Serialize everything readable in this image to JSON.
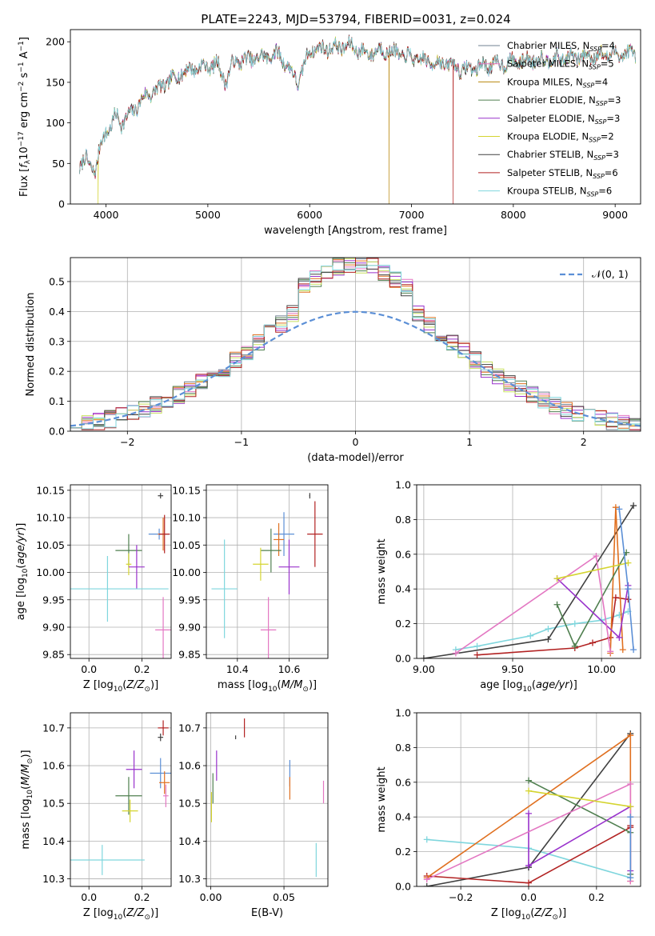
{
  "figure": {
    "title": "PLATE=2243, MJD=53794, FIBERID=0031, z=0.024"
  },
  "chart_data": [
    {
      "id": "spectrum",
      "type": "line",
      "xlabel": "wavelength [Angstrom, rest frame]",
      "ylabel": "Flux [f_λ10^-17 erg cm^-2 s^-1 A^-1]",
      "xlim": [
        3650,
        9250
      ],
      "ylim": [
        0,
        215
      ],
      "xticks": [
        4000,
        5000,
        6000,
        7000,
        8000,
        9000
      ],
      "yticks": [
        0,
        50,
        100,
        150,
        200
      ],
      "grid": false,
      "legend": "right",
      "x": [
        3740,
        3800,
        3900,
        3950,
        4000,
        4050,
        4100,
        4150,
        4200,
        4300,
        4400,
        4500,
        4600,
        4700,
        4800,
        4900,
        5000,
        5100,
        5175,
        5250,
        5400,
        5500,
        5700,
        5890,
        6000,
        6200,
        6400,
        6563,
        6700,
        6800,
        7000,
        7200,
        7400,
        7500,
        7700,
        8000,
        8200,
        8500,
        8700,
        9000,
        9200
      ],
      "flux": [
        45,
        55,
        40,
        75,
        90,
        95,
        110,
        100,
        105,
        120,
        135,
        140,
        150,
        158,
        165,
        168,
        170,
        172,
        150,
        175,
        178,
        180,
        185,
        150,
        190,
        192,
        195,
        185,
        190,
        188,
        180,
        175,
        172,
        165,
        170,
        175,
        178,
        180,
        182,
        185,
        186
      ],
      "series": [
        {
          "name": "Chabrier MILES, N_SSP=4",
          "label_main": "Chabrier MILES, N",
          "label_sub": "SSP",
          "label_tail": "=4",
          "color": "#708090",
          "spike_at": null
        },
        {
          "name": "Salpeter MILES, N_SSP=5",
          "label_main": "Salpeter MILES, N",
          "label_sub": "SSP",
          "label_tail": "=5",
          "color": "#e377c2",
          "spike_at": null
        },
        {
          "name": "Kroupa MILES, N_SSP=4",
          "label_main": "Kroupa MILES, N",
          "label_sub": "SSP",
          "label_tail": "=4",
          "color": "#b8860b",
          "spike_at": 6780
        },
        {
          "name": "Chabrier ELODIE, N_SSP=3",
          "label_main": "Chabrier ELODIE, N",
          "label_sub": "SSP",
          "label_tail": "=3",
          "color": "#4f7f4f",
          "spike_at": null
        },
        {
          "name": "Salpeter ELODIE, N_SSP=3",
          "label_main": "Salpeter ELODIE, N",
          "label_sub": "SSP",
          "label_tail": "=3",
          "color": "#9932cc",
          "spike_at": null
        },
        {
          "name": "Kroupa ELODIE, N_SSP=2",
          "label_main": "Kroupa ELODIE, N",
          "label_sub": "SSP",
          "label_tail": "=2",
          "color": "#d4d430",
          "spike_at": 3920
        },
        {
          "name": "Chabrier STELIB, N_SSP=3",
          "label_main": "Chabrier STELIB, N",
          "label_sub": "SSP",
          "label_tail": "=3",
          "color": "#404040",
          "spike_at": null
        },
        {
          "name": "Salpeter STELIB, N_SSP=6",
          "label_main": "Salpeter STELIB, N",
          "label_sub": "SSP",
          "label_tail": "=6",
          "color": "#b22222",
          "spike_at": 7410
        },
        {
          "name": "Kroupa STELIB, N_SSP=6",
          "label_main": "Kroupa STELIB, N",
          "label_sub": "SSP",
          "label_tail": "=6",
          "color": "#7fd6dd",
          "spike_at": null
        }
      ]
    },
    {
      "id": "residuals",
      "type": "histogram",
      "xlabel": "(data-model)/error",
      "ylabel": "Normed distribution",
      "xlim": [
        -2.5,
        2.5
      ],
      "ylim": [
        0,
        0.58
      ],
      "xticks": [
        -2,
        -1,
        0,
        1,
        2
      ],
      "yticks": [
        0.0,
        0.1,
        0.2,
        0.3,
        0.4,
        0.5
      ],
      "grid": true,
      "legend": "top-right",
      "reference": {
        "name": "𝒩(0, 1)",
        "mean": 0,
        "sigma": 1,
        "color": "#5b8fd6"
      },
      "series_colors": [
        "#708090",
        "#e377c2",
        "#e07020",
        "#4f7f4f",
        "#9932cc",
        "#c8e060",
        "#404040",
        "#b22222",
        "#7fd6dd"
      ]
    },
    {
      "id": "age_vs_Z",
      "type": "errorbar",
      "xlabel": "Z [log10(Z/Z⊙)]",
      "ylabel": "age [log10(age/yr)]",
      "xlim": [
        -0.07,
        0.31
      ],
      "ylim": [
        9.843,
        10.16
      ],
      "xticks": [
        0.0,
        0.2
      ],
      "yticks": [
        9.85,
        9.9,
        9.95,
        10.0,
        10.05,
        10.1,
        10.15
      ],
      "grid": true,
      "points": [
        {
          "x": 0.27,
          "y": 10.14,
          "xerr": 0.01,
          "yerr": 0.005,
          "color": "#404040"
        },
        {
          "x": 0.265,
          "y": 10.07,
          "xerr": 0.04,
          "yerr": 0.01,
          "color": "#5b8fd6"
        },
        {
          "x": 0.28,
          "y": 10.07,
          "xerr": 0.02,
          "yerr": 0.03,
          "color": "#e07020"
        },
        {
          "x": 0.285,
          "y": 10.07,
          "xerr": 0.02,
          "yerr": 0.035,
          "color": "#b22222"
        },
        {
          "x": 0.15,
          "y": 10.04,
          "xerr": 0.05,
          "yerr": 0.03,
          "color": "#4f7f4f"
        },
        {
          "x": 0.15,
          "y": 10.015,
          "xerr": 0.01,
          "yerr": 0.02,
          "color": "#d4d430"
        },
        {
          "x": 0.18,
          "y": 10.01,
          "xerr": 0.03,
          "yerr": 0.04,
          "color": "#9932cc"
        },
        {
          "x": 0.07,
          "y": 9.97,
          "xerr": 0.23,
          "yerr": 0.06,
          "color": "#7fd6dd"
        },
        {
          "x": 0.28,
          "y": 9.895,
          "xerr": 0.03,
          "yerr": 0.06,
          "color": "#e377c2"
        }
      ]
    },
    {
      "id": "age_vs_mass",
      "type": "errorbar",
      "xlabel": "mass [log10(M/M⊙)]",
      "ylabel": "",
      "xlim": [
        10.28,
        10.75
      ],
      "ylim": [
        9.843,
        10.16
      ],
      "xticks": [
        10.4,
        10.6
      ],
      "yticks": [
        9.85,
        9.9,
        9.95,
        10.0,
        10.05,
        10.1,
        10.15
      ],
      "grid": true,
      "points": [
        {
          "x": 10.68,
          "y": 10.14,
          "xerr": 0.002,
          "yerr": 0.005,
          "color": "#404040"
        },
        {
          "x": 10.7,
          "y": 10.07,
          "xerr": 0.03,
          "yerr": 0.06,
          "color": "#b22222"
        },
        {
          "x": 10.58,
          "y": 10.07,
          "xerr": 0.04,
          "yerr": 0.04,
          "color": "#5b8fd6"
        },
        {
          "x": 10.56,
          "y": 10.06,
          "xerr": 0.02,
          "yerr": 0.03,
          "color": "#e07020"
        },
        {
          "x": 10.53,
          "y": 10.04,
          "xerr": 0.04,
          "yerr": 0.04,
          "color": "#4f7f4f"
        },
        {
          "x": 10.49,
          "y": 10.015,
          "xerr": 0.03,
          "yerr": 0.03,
          "color": "#d4d430"
        },
        {
          "x": 10.6,
          "y": 10.01,
          "xerr": 0.04,
          "yerr": 0.05,
          "color": "#9932cc"
        },
        {
          "x": 10.35,
          "y": 9.97,
          "xerr": 0.05,
          "yerr": 0.09,
          "color": "#7fd6dd"
        },
        {
          "x": 10.52,
          "y": 9.895,
          "xerr": 0.03,
          "yerr": 0.06,
          "color": "#e377c2"
        }
      ]
    },
    {
      "id": "weight_vs_age",
      "type": "line",
      "xlabel": "age [log10(age/yr)]",
      "ylabel": "mass weight",
      "xlim": [
        8.96,
        10.22
      ],
      "ylim": [
        0,
        1.0
      ],
      "xticks": [
        9.0,
        9.5,
        10.0
      ],
      "yticks": [
        0.0,
        0.2,
        0.4,
        0.6,
        0.8,
        1.0
      ],
      "grid": true,
      "series": [
        {
          "color": "#7fd6dd",
          "x": [
            9.18,
            9.3,
            9.6,
            9.7,
            9.85,
            10.0,
            10.1,
            10.15
          ],
          "y": [
            0.05,
            0.07,
            0.13,
            0.17,
            0.2,
            0.22,
            0.25,
            0.27
          ]
        },
        {
          "color": "#404040",
          "x": [
            9.0,
            9.7,
            10.18
          ],
          "y": [
            0.0,
            0.11,
            0.88
          ]
        },
        {
          "color": "#b22222",
          "x": [
            9.3,
            9.85,
            9.95,
            10.05,
            10.08,
            10.15
          ],
          "y": [
            0.02,
            0.06,
            0.09,
            0.12,
            0.35,
            0.34
          ]
        },
        {
          "color": "#e07020",
          "x": [
            10.05,
            10.08,
            10.12
          ],
          "y": [
            0.03,
            0.87,
            0.05
          ]
        },
        {
          "color": "#4f7f4f",
          "x": [
            9.75,
            9.85,
            10.14
          ],
          "y": [
            0.31,
            0.07,
            0.61
          ]
        },
        {
          "color": "#9932cc",
          "x": [
            9.75,
            10.1,
            10.15
          ],
          "y": [
            0.46,
            0.12,
            0.42
          ]
        },
        {
          "color": "#e377c2",
          "x": [
            9.18,
            9.97,
            10.05
          ],
          "y": [
            0.03,
            0.59,
            0.04
          ]
        },
        {
          "color": "#d4d430",
          "x": [
            9.75,
            10.15
          ],
          "y": [
            0.46,
            0.55
          ]
        },
        {
          "color": "#5b8fd6",
          "x": [
            10.1,
            10.15,
            10.18
          ],
          "y": [
            0.86,
            0.4,
            0.05
          ]
        }
      ]
    },
    {
      "id": "mass_vs_Z",
      "type": "errorbar",
      "xlabel": "Z [log10(Z/Z⊙)]",
      "ylabel": "mass [log10(M/M⊙)]",
      "xlim": [
        -0.07,
        0.31
      ],
      "ylim": [
        10.28,
        10.74
      ],
      "xticks": [
        0.0,
        0.2
      ],
      "yticks": [
        10.3,
        10.4,
        10.5,
        10.6,
        10.7
      ],
      "grid": true,
      "points": [
        {
          "x": 0.28,
          "y": 10.7,
          "xerr": 0.02,
          "yerr": 0.02,
          "color": "#b22222"
        },
        {
          "x": 0.27,
          "y": 10.675,
          "xerr": 0.01,
          "yerr": 0.01,
          "color": "#404040"
        },
        {
          "x": 0.27,
          "y": 10.58,
          "xerr": 0.04,
          "yerr": 0.04,
          "color": "#5b8fd6"
        },
        {
          "x": 0.285,
          "y": 10.555,
          "xerr": 0.02,
          "yerr": 0.03,
          "color": "#e07020"
        },
        {
          "x": 0.29,
          "y": 10.52,
          "xerr": 0.01,
          "yerr": 0.03,
          "color": "#e377c2"
        },
        {
          "x": 0.17,
          "y": 10.59,
          "xerr": 0.03,
          "yerr": 0.05,
          "color": "#9932cc"
        },
        {
          "x": 0.15,
          "y": 10.52,
          "xerr": 0.05,
          "yerr": 0.05,
          "color": "#4f7f4f"
        },
        {
          "x": 0.155,
          "y": 10.48,
          "xerr": 0.03,
          "yerr": 0.03,
          "color": "#d4d430"
        },
        {
          "x": 0.05,
          "y": 10.35,
          "xerr": 0.16,
          "yerr": 0.04,
          "color": "#7fd6dd"
        }
      ]
    },
    {
      "id": "mass_vs_ebv",
      "type": "errorbar",
      "xlabel": "E(B-V)",
      "ylabel": "",
      "xlim": [
        -0.003,
        0.08
      ],
      "ylim": [
        10.28,
        10.74
      ],
      "xticks": [
        0.0,
        0.05
      ],
      "yticks": [
        10.3,
        10.4,
        10.5,
        10.6,
        10.7
      ],
      "grid": true,
      "points": [
        {
          "x": 0.023,
          "y": 10.7,
          "xerr": 0.0,
          "yerr": 0.025,
          "color": "#b22222"
        },
        {
          "x": 0.017,
          "y": 10.675,
          "xerr": 0.0,
          "yerr": 0.005,
          "color": "#404040"
        },
        {
          "x": 0.004,
          "y": 10.6,
          "xerr": 0.0,
          "yerr": 0.04,
          "color": "#9932cc"
        },
        {
          "x": 0.0015,
          "y": 10.54,
          "xerr": 0.0,
          "yerr": 0.04,
          "color": "#4f7f4f"
        },
        {
          "x": 0.0005,
          "y": 10.49,
          "xerr": 0.0,
          "yerr": 0.04,
          "color": "#d4d430"
        },
        {
          "x": 0.054,
          "y": 10.58,
          "xerr": 0.0,
          "yerr": 0.035,
          "color": "#5b8fd6"
        },
        {
          "x": 0.054,
          "y": 10.54,
          "xerr": 0.0,
          "yerr": 0.03,
          "color": "#e07020"
        },
        {
          "x": 0.077,
          "y": 10.53,
          "xerr": 0.0,
          "yerr": 0.03,
          "color": "#e377c2"
        },
        {
          "x": 0.072,
          "y": 10.35,
          "xerr": 0.0,
          "yerr": 0.045,
          "color": "#7fd6dd"
        }
      ]
    },
    {
      "id": "weight_vs_Z",
      "type": "line",
      "xlabel": "Z [log10(Z/Z⊙)]",
      "ylabel": "mass weight",
      "xlim": [
        -0.33,
        0.33
      ],
      "ylim": [
        0,
        1.0
      ],
      "xticks": [
        -0.2,
        0.0,
        0.2
      ],
      "yticks": [
        0.0,
        0.2,
        0.4,
        0.6,
        0.8,
        1.0
      ],
      "grid": true,
      "series": [
        {
          "color": "#7fd6dd",
          "x": [
            -0.3,
            0.0,
            0.3
          ],
          "y": [
            0.27,
            0.22,
            0.05
          ]
        },
        {
          "color": "#404040",
          "x": [
            -0.3,
            0.0,
            0.0,
            0.3
          ],
          "y": [
            0.0,
            0.11,
            0.11,
            0.88
          ]
        },
        {
          "color": "#b22222",
          "x": [
            -0.3,
            0.0,
            0.3,
            0.3
          ],
          "y": [
            0.06,
            0.02,
            0.34,
            0.35
          ]
        },
        {
          "color": "#e07020",
          "x": [
            -0.3,
            0.3,
            0.3
          ],
          "y": [
            0.05,
            0.87,
            0.03
          ]
        },
        {
          "color": "#4f7f4f",
          "x": [
            0.0,
            0.3,
            0.3
          ],
          "y": [
            0.61,
            0.31,
            0.07
          ]
        },
        {
          "color": "#9932cc",
          "x": [
            0.0,
            0.0,
            0.3,
            0.3
          ],
          "y": [
            0.42,
            0.12,
            0.46,
            0.09
          ]
        },
        {
          "color": "#e377c2",
          "x": [
            -0.3,
            0.3,
            0.3
          ],
          "y": [
            0.04,
            0.59,
            0.03
          ]
        },
        {
          "color": "#d4d430",
          "x": [
            0.0,
            0.3
          ],
          "y": [
            0.55,
            0.46
          ]
        },
        {
          "color": "#5b8fd6",
          "x": [
            0.3,
            0.3
          ],
          "y": [
            0.4,
            0.05
          ]
        }
      ]
    }
  ]
}
